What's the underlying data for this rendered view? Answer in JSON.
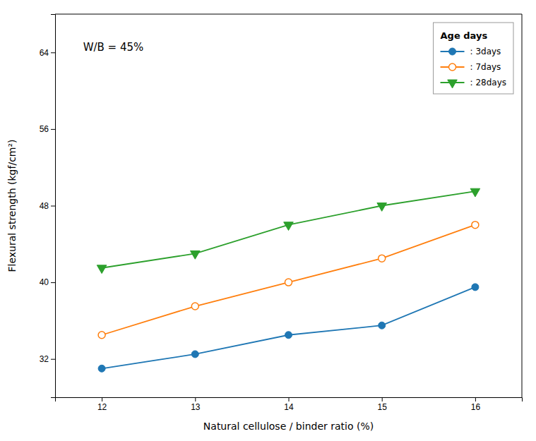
{
  "chart_data": {
    "type": "line",
    "xlabel": "Natural cellulose / binder ratio (%)",
    "ylabel": "Flexural strength (kgf/cm²)",
    "annotation": "W/B = 45%",
    "legend_title": "Age days",
    "legend": "upper right",
    "grid": false,
    "x": [
      12,
      13,
      14,
      15,
      16
    ],
    "series": [
      {
        "name": ": 3days",
        "marker": "circle",
        "values": [
          31.0,
          32.5,
          34.5,
          35.5,
          39.5
        ]
      },
      {
        "name": ": 7days",
        "marker": "open-circle",
        "values": [
          34.5,
          37.5,
          40.0,
          42.5,
          46.0
        ]
      },
      {
        "name": ": 28days",
        "marker": "triangle-down",
        "values": [
          41.5,
          43.0,
          46.0,
          48.0,
          49.5
        ]
      }
    ],
    "xlim": [
      11.5,
      16.5
    ],
    "ylim": [
      28,
      68
    ],
    "xticks": [
      12,
      13,
      14,
      15,
      16
    ],
    "yticks": [
      32,
      40,
      48,
      56,
      64
    ]
  }
}
